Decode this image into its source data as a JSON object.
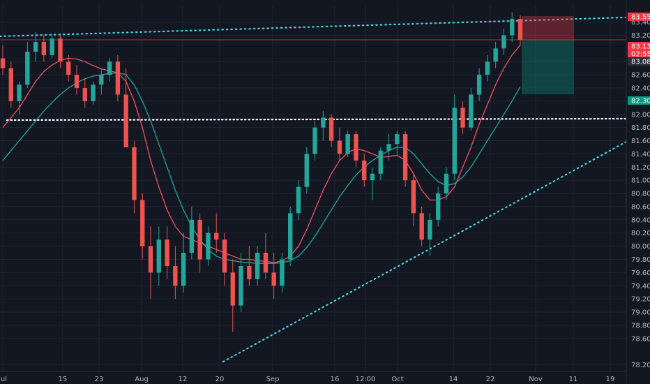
{
  "chart_data": {
    "type": "candlestick",
    "title": "",
    "xlabel": "",
    "ylabel": "",
    "ylim": [
      78.1,
      83.65
    ],
    "grid": true,
    "x_ticks": [
      "Jul",
      "15",
      "23",
      "Aug",
      "12",
      "20",
      "Sep",
      "16",
      "12:00",
      "Oct",
      "14",
      "22",
      "Nov",
      "11",
      "19"
    ],
    "y_ticks": [
      "83.400",
      "83.200",
      "82.800",
      "82.600",
      "82.400",
      "82.200",
      "82.000",
      "81.800",
      "81.600",
      "81.400",
      "81.200",
      "81.000",
      "80.800",
      "80.600",
      "80.400",
      "80.200",
      "80.000",
      "79.800",
      "79.600",
      "79.400",
      "79.200",
      "79.000",
      "78.800",
      "78.600",
      "78.200"
    ],
    "price_badges": [
      {
        "label": "83.552",
        "value": 83.552,
        "color": "#f23645"
      },
      {
        "label": "83.131",
        "value": 83.131,
        "color": "#f23645"
      },
      {
        "label": "02:55:49",
        "value": 83.0,
        "color": "#f23645"
      },
      {
        "label": "83.089",
        "value": 83.089,
        "color": "#2a2e39"
      },
      {
        "label": "82.304",
        "value": 82.304,
        "color": "#089981"
      }
    ],
    "series": [
      {
        "kind": "candles",
        "values": [
          [
            82.85,
            83.05,
            82.6,
            82.7
          ],
          [
            82.7,
            82.8,
            82.1,
            82.2
          ],
          [
            82.2,
            82.5,
            82.0,
            82.45
          ],
          [
            82.45,
            83.1,
            82.4,
            82.95
          ],
          [
            82.95,
            83.25,
            82.8,
            83.1
          ],
          [
            83.1,
            83.2,
            82.8,
            82.9
          ],
          [
            82.9,
            83.2,
            82.85,
            83.15
          ],
          [
            83.15,
            83.2,
            82.7,
            82.8
          ],
          [
            82.8,
            82.9,
            82.5,
            82.6
          ],
          [
            82.6,
            82.75,
            82.3,
            82.4
          ],
          [
            82.4,
            82.55,
            82.1,
            82.2
          ],
          [
            82.2,
            82.5,
            82.15,
            82.45
          ],
          [
            82.45,
            82.7,
            82.3,
            82.6
          ],
          [
            82.6,
            82.85,
            82.5,
            82.8
          ],
          [
            82.8,
            82.9,
            82.2,
            82.3
          ],
          [
            82.3,
            82.7,
            81.9,
            81.5
          ],
          [
            81.5,
            81.6,
            80.5,
            80.7
          ],
          [
            80.7,
            80.8,
            79.8,
            80.0
          ],
          [
            80.0,
            80.3,
            79.2,
            79.6
          ],
          [
            79.6,
            80.3,
            79.4,
            80.1
          ],
          [
            80.1,
            80.3,
            79.5,
            79.7
          ],
          [
            79.7,
            80.0,
            79.2,
            79.4
          ],
          [
            79.4,
            80.2,
            79.3,
            79.9
          ],
          [
            79.9,
            80.6,
            79.8,
            80.4
          ],
          [
            80.4,
            80.5,
            79.6,
            79.8
          ],
          [
            79.8,
            80.3,
            79.7,
            80.2
          ],
          [
            80.2,
            80.5,
            79.9,
            80.1
          ],
          [
            80.1,
            80.2,
            79.4,
            79.6
          ],
          [
            79.6,
            79.8,
            78.7,
            79.1
          ],
          [
            79.1,
            79.9,
            79.0,
            79.7
          ],
          [
            79.7,
            80.0,
            79.4,
            79.5
          ],
          [
            79.5,
            80.0,
            79.4,
            79.9
          ],
          [
            79.9,
            80.2,
            79.5,
            79.6
          ],
          [
            79.6,
            79.9,
            79.2,
            79.4
          ],
          [
            79.4,
            79.9,
            79.3,
            79.8
          ],
          [
            79.8,
            80.6,
            79.7,
            80.5
          ],
          [
            80.5,
            81.0,
            80.4,
            80.9
          ],
          [
            80.9,
            81.5,
            80.8,
            81.4
          ],
          [
            81.4,
            81.9,
            81.3,
            81.8
          ],
          [
            81.8,
            82.05,
            81.6,
            81.95
          ],
          [
            81.95,
            82.0,
            81.5,
            81.6
          ],
          [
            81.6,
            81.8,
            81.3,
            81.4
          ],
          [
            81.4,
            81.75,
            81.35,
            81.7
          ],
          [
            81.7,
            81.75,
            81.2,
            81.3
          ],
          [
            81.3,
            81.4,
            80.9,
            81.0
          ],
          [
            81.0,
            81.2,
            80.7,
            81.1
          ],
          [
            81.1,
            81.5,
            81.0,
            81.45
          ],
          [
            81.45,
            81.7,
            81.3,
            81.55
          ],
          [
            81.55,
            81.75,
            81.4,
            81.7
          ],
          [
            81.7,
            81.75,
            80.9,
            81.0
          ],
          [
            81.0,
            81.1,
            80.3,
            80.5
          ],
          [
            80.5,
            80.6,
            80.0,
            80.1
          ],
          [
            80.1,
            80.5,
            79.85,
            80.4
          ],
          [
            80.4,
            80.9,
            80.3,
            80.8
          ],
          [
            80.8,
            81.2,
            80.7,
            81.1
          ],
          [
            81.1,
            82.3,
            81.0,
            82.1
          ],
          [
            82.1,
            82.2,
            81.7,
            81.8
          ],
          [
            81.8,
            82.4,
            81.75,
            82.3
          ],
          [
            82.3,
            82.7,
            82.2,
            82.6
          ],
          [
            82.6,
            82.9,
            82.5,
            82.8
          ],
          [
            82.8,
            83.1,
            82.7,
            83.0
          ],
          [
            83.0,
            83.3,
            82.9,
            83.2
          ],
          [
            83.2,
            83.55,
            83.1,
            83.45
          ],
          [
            83.45,
            83.5,
            83.05,
            83.13
          ]
        ]
      },
      {
        "kind": "line",
        "color": "#f7525f",
        "values": [
          81.8,
          81.95,
          82.1,
          82.3,
          82.5,
          82.65,
          82.75,
          82.82,
          82.85,
          82.84,
          82.8,
          82.74,
          82.69,
          82.66,
          82.63,
          82.5,
          82.2,
          81.8,
          81.3,
          80.9,
          80.55,
          80.3,
          80.15,
          80.1,
          80.05,
          80.0,
          79.95,
          79.9,
          79.85,
          79.8,
          79.8,
          79.78,
          79.77,
          79.75,
          79.78,
          79.85,
          80.0,
          80.25,
          80.55,
          80.85,
          81.1,
          81.3,
          81.42,
          81.48,
          81.45,
          81.4,
          81.35,
          81.36,
          81.38,
          81.3,
          81.1,
          80.85,
          80.7,
          80.7,
          80.75,
          80.9,
          81.2,
          81.5,
          81.85,
          82.15,
          82.45,
          82.7,
          82.9,
          83.05
        ]
      },
      {
        "kind": "line",
        "color": "#26a69a",
        "values": [
          81.3,
          81.45,
          81.6,
          81.75,
          81.9,
          82.05,
          82.18,
          82.3,
          82.4,
          82.48,
          82.54,
          82.58,
          82.6,
          82.62,
          82.63,
          82.6,
          82.45,
          82.2,
          81.9,
          81.55,
          81.2,
          80.85,
          80.55,
          80.3,
          80.1,
          79.95,
          79.85,
          79.8,
          79.78,
          79.76,
          79.75,
          79.74,
          79.74,
          79.74,
          79.75,
          79.78,
          79.85,
          79.98,
          80.15,
          80.35,
          80.55,
          80.75,
          80.92,
          81.08,
          81.2,
          81.3,
          81.38,
          81.45,
          81.5,
          81.5,
          81.4,
          81.25,
          81.1,
          80.98,
          80.92,
          80.95,
          81.05,
          81.2,
          81.4,
          81.6,
          81.8,
          82.0,
          82.2,
          82.42
        ]
      }
    ]
  }
}
